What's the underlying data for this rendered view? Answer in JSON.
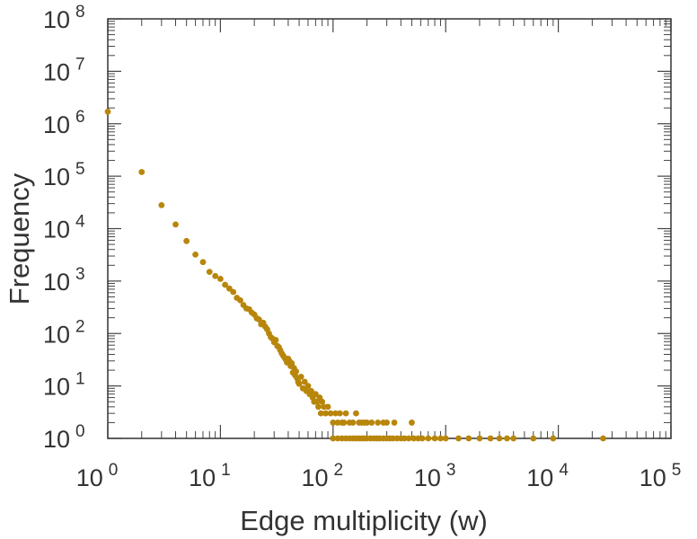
{
  "chart_data": {
    "type": "scatter",
    "title": "",
    "xlabel": "Edge multiplicity (w)",
    "ylabel": "Frequency",
    "xscale": "log",
    "yscale": "log",
    "xlim": [
      1,
      100000
    ],
    "ylim": [
      1,
      100000000
    ],
    "grid": false,
    "marker_color": "#b8860b",
    "x_ticks": [
      {
        "base": "10",
        "exp": "0"
      },
      {
        "base": "10",
        "exp": "1"
      },
      {
        "base": "10",
        "exp": "2"
      },
      {
        "base": "10",
        "exp": "3"
      },
      {
        "base": "10",
        "exp": "4"
      },
      {
        "base": "10",
        "exp": "5"
      }
    ],
    "y_ticks": [
      {
        "base": "10",
        "exp": "0"
      },
      {
        "base": "10",
        "exp": "1"
      },
      {
        "base": "10",
        "exp": "2"
      },
      {
        "base": "10",
        "exp": "3"
      },
      {
        "base": "10",
        "exp": "4"
      },
      {
        "base": "10",
        "exp": "5"
      },
      {
        "base": "10",
        "exp": "6"
      },
      {
        "base": "10",
        "exp": "7"
      },
      {
        "base": "10",
        "exp": "8"
      }
    ],
    "points": [
      [
        1,
        1700000
      ],
      [
        2,
        120000
      ],
      [
        3,
        28000
      ],
      [
        4,
        12000
      ],
      [
        5,
        5800
      ],
      [
        6,
        3200
      ],
      [
        7,
        2300
      ],
      [
        8,
        1500
      ],
      [
        9,
        1250
      ],
      [
        10,
        1100
      ],
      [
        11,
        850
      ],
      [
        12,
        720
      ],
      [
        13,
        620
      ],
      [
        14,
        480
      ],
      [
        15,
        430
      ],
      [
        16,
        350
      ],
      [
        17,
        300
      ],
      [
        18,
        290
      ],
      [
        19,
        250
      ],
      [
        20,
        230
      ],
      [
        21,
        195
      ],
      [
        22,
        185
      ],
      [
        23,
        150
      ],
      [
        24,
        160
      ],
      [
        25,
        135
      ],
      [
        26,
        120
      ],
      [
        27,
        100
      ],
      [
        28,
        85
      ],
      [
        29,
        80
      ],
      [
        30,
        68
      ],
      [
        31,
        75
      ],
      [
        32,
        58
      ],
      [
        33,
        55
      ],
      [
        34,
        48
      ],
      [
        35,
        42
      ],
      [
        36,
        38
      ],
      [
        37,
        35
      ],
      [
        38,
        32
      ],
      [
        39,
        28
      ],
      [
        40,
        33
      ],
      [
        41,
        30
      ],
      [
        42,
        24
      ],
      [
        43,
        27
      ],
      [
        44,
        18
      ],
      [
        45,
        22
      ],
      [
        46,
        16
      ],
      [
        47,
        19
      ],
      [
        48,
        14
      ],
      [
        49,
        12
      ],
      [
        50,
        11
      ],
      [
        52,
        15
      ],
      [
        54,
        9
      ],
      [
        56,
        12
      ],
      [
        58,
        8
      ],
      [
        60,
        10
      ],
      [
        62,
        7
      ],
      [
        64,
        8
      ],
      [
        66,
        6
      ],
      [
        68,
        5
      ],
      [
        70,
        7
      ],
      [
        72,
        5
      ],
      [
        74,
        4
      ],
      [
        76,
        6
      ],
      [
        78,
        3
      ],
      [
        80,
        5
      ],
      [
        83,
        4
      ],
      [
        86,
        3
      ],
      [
        90,
        4
      ],
      [
        95,
        3
      ],
      [
        100,
        2
      ],
      [
        105,
        3
      ],
      [
        110,
        2
      ],
      [
        115,
        3
      ],
      [
        120,
        2
      ],
      [
        125,
        2
      ],
      [
        130,
        3
      ],
      [
        140,
        2
      ],
      [
        150,
        2
      ],
      [
        160,
        3
      ],
      [
        170,
        2
      ],
      [
        180,
        2
      ],
      [
        190,
        2
      ],
      [
        200,
        2
      ],
      [
        220,
        2
      ],
      [
        250,
        2
      ],
      [
        280,
        2
      ],
      [
        300,
        2
      ],
      [
        350,
        2
      ],
      [
        500,
        2
      ],
      [
        100,
        1
      ],
      [
        110,
        1
      ],
      [
        120,
        1
      ],
      [
        130,
        1
      ],
      [
        140,
        1
      ],
      [
        150,
        1
      ],
      [
        160,
        1
      ],
      [
        170,
        1
      ],
      [
        180,
        1
      ],
      [
        190,
        1
      ],
      [
        200,
        1
      ],
      [
        215,
        1
      ],
      [
        230,
        1
      ],
      [
        245,
        1
      ],
      [
        260,
        1
      ],
      [
        280,
        1
      ],
      [
        300,
        1
      ],
      [
        320,
        1
      ],
      [
        340,
        1
      ],
      [
        370,
        1
      ],
      [
        400,
        1
      ],
      [
        430,
        1
      ],
      [
        470,
        1
      ],
      [
        520,
        1
      ],
      [
        570,
        1
      ],
      [
        620,
        1
      ],
      [
        700,
        1
      ],
      [
        800,
        1
      ],
      [
        900,
        1
      ],
      [
        1000,
        1
      ],
      [
        1300,
        1
      ],
      [
        1600,
        1
      ],
      [
        2000,
        1
      ],
      [
        2500,
        1
      ],
      [
        3000,
        1
      ],
      [
        3500,
        1
      ],
      [
        4000,
        1
      ],
      [
        6000,
        1
      ],
      [
        9000,
        1
      ],
      [
        25000,
        1
      ]
    ]
  }
}
